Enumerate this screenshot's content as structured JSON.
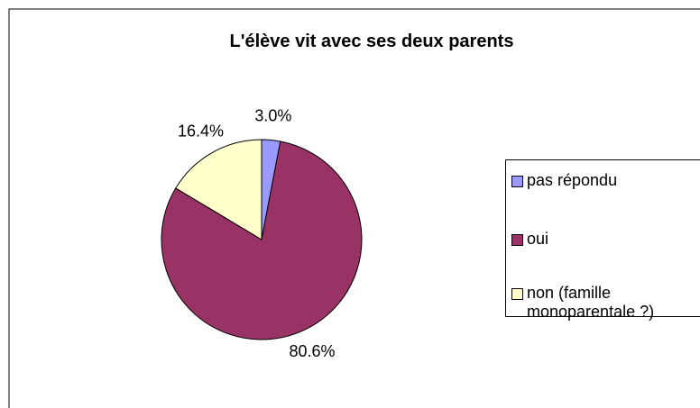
{
  "chart_data": {
    "type": "pie",
    "title": "L'élève vit avec ses deux parents",
    "categories": [
      "pas répondu",
      "oui",
      "non (famille monoparentale ?)"
    ],
    "values": [
      3.0,
      80.6,
      16.4
    ],
    "value_labels": [
      "3.0%",
      "80.6%",
      "16.4%"
    ],
    "colors": [
      "#9999ff",
      "#993366",
      "#ffffcc"
    ],
    "legend": "right"
  }
}
